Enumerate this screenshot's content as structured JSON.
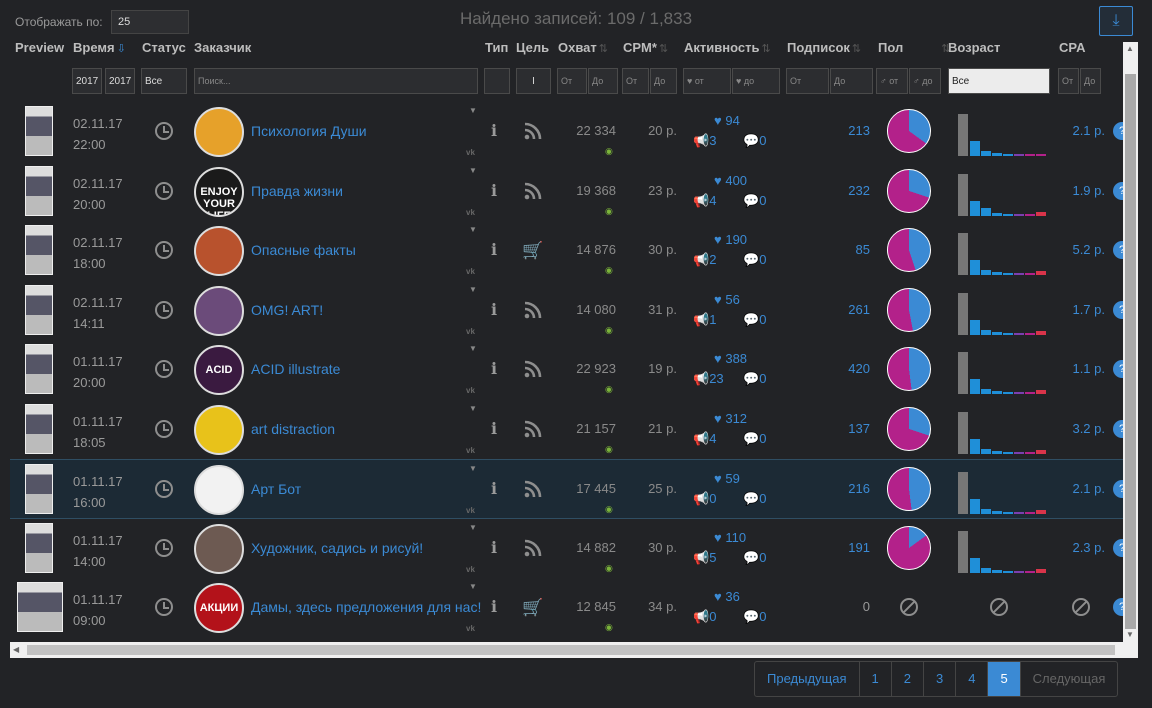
{
  "header": {
    "show_label": "Отображать по:",
    "show_value": "25",
    "found_text": "Найдено записей: 109 / 1,833"
  },
  "columns": [
    "Preview",
    "Время",
    "Статус",
    "Заказчик",
    "Тип",
    "Цель",
    "Охват",
    "CPM*",
    "Активность",
    "Подписок",
    "Пол",
    "Возраст",
    "CPA"
  ],
  "filters": {
    "date_from": "2017",
    "date_to": "2017",
    "status": "Все",
    "search_placeholder": "Поиск...",
    "goal": "I",
    "from": "От",
    "to": "До",
    "act_from": "♥ от",
    "act_to": "♥ до",
    "sex_from": "♂ от",
    "sex_to": "♂ до",
    "age": "Все"
  },
  "rows": [
    {
      "date": "02.11.17",
      "time": "22:00",
      "name": "Психология Души",
      "reach": "22 334",
      "cpm": "20 р.",
      "likes": "94",
      "reposts": "3",
      "comments": "0",
      "subs": "213",
      "cpa": "2.1 р.",
      "goal": "rss",
      "male": 35
    },
    {
      "date": "02.11.17",
      "time": "20:00",
      "name": "Правда жизни",
      "reach": "19 368",
      "cpm": "23 р.",
      "likes": "400",
      "reposts": "4",
      "comments": "0",
      "subs": "232",
      "cpa": "1.9 р.",
      "goal": "rss",
      "male": 30
    },
    {
      "date": "02.11.17",
      "time": "18:00",
      "name": "Опасные факты",
      "reach": "14 876",
      "cpm": "30 р.",
      "likes": "190",
      "reposts": "2",
      "comments": "0",
      "subs": "85",
      "cpa": "5.2 р.",
      "goal": "cart",
      "male": 45
    },
    {
      "date": "02.11.17",
      "time": "14:11",
      "name": "OMG! ART!",
      "reach": "14 080",
      "cpm": "31 р.",
      "likes": "56",
      "reposts": "1",
      "comments": "0",
      "subs": "261",
      "cpa": "1.7 р.",
      "goal": "rss",
      "male": 47
    },
    {
      "date": "01.11.17",
      "time": "20:00",
      "name": "ACID illustrate",
      "reach": "22 923",
      "cpm": "19 р.",
      "likes": "388",
      "reposts": "23",
      "comments": "0",
      "subs": "420",
      "cpa": "1.1 р.",
      "goal": "rss",
      "male": 48
    },
    {
      "date": "01.11.17",
      "time": "18:05",
      "name": "art distraction",
      "reach": "21 157",
      "cpm": "21 р.",
      "likes": "312",
      "reposts": "4",
      "comments": "0",
      "subs": "137",
      "cpa": "3.2 р.",
      "goal": "rss",
      "male": 30
    },
    {
      "date": "01.11.17",
      "time": "16:00",
      "name": "Арт Бот",
      "reach": "17 445",
      "cpm": "25 р.",
      "likes": "59",
      "reposts": "0",
      "comments": "0",
      "subs": "216",
      "cpa": "2.1 р.",
      "goal": "rss",
      "male": 48
    },
    {
      "date": "01.11.17",
      "time": "14:00",
      "name": "Художник, садись и рисуй!",
      "reach": "14 882",
      "cpm": "30 р.",
      "likes": "110",
      "reposts": "5",
      "comments": "0",
      "subs": "191",
      "cpa": "2.3 р.",
      "goal": "rss",
      "male": 15
    },
    {
      "date": "01.11.17",
      "time": "09:00",
      "name": "Дамы, здесь предложения для нас!",
      "reach": "12 845",
      "cpm": "34 р.",
      "likes": "36",
      "reposts": "0",
      "comments": "0",
      "subs": "0",
      "cpa": "",
      "goal": "cart",
      "male": null
    }
  ],
  "avatar_texts": [
    "",
    "ENJOY YOUR LIFE",
    "",
    "",
    "ACID",
    "",
    "",
    "",
    "АКЦИИ"
  ],
  "colors": {
    "accent": "#3b8ad4",
    "female": "#b3218a",
    "male": "#3b8ad4",
    "cart": "#e04848"
  },
  "pager": {
    "prev": "Предыдущая",
    "pages": [
      "1",
      "2",
      "3",
      "4",
      "5"
    ],
    "active": "5",
    "next": "Следующая"
  }
}
